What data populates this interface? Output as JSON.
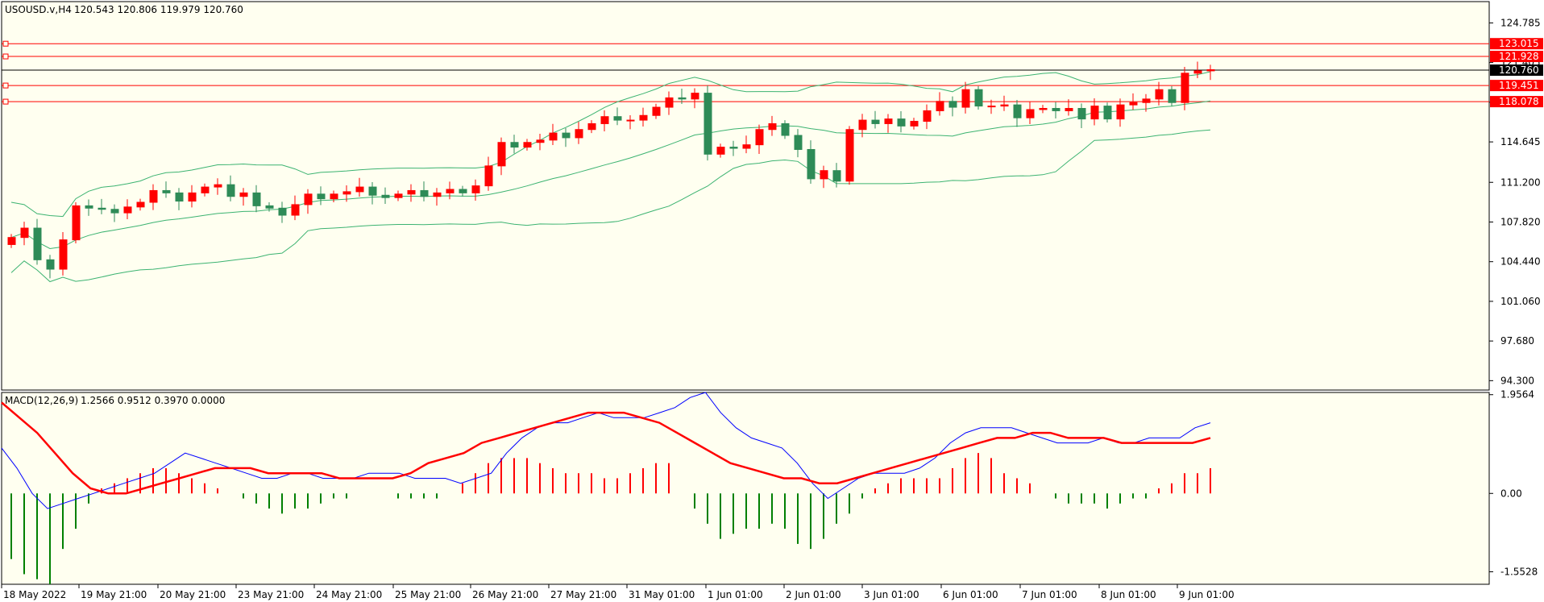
{
  "chart_data": [
    {
      "type": "candlestick",
      "title": "USOUSD.v,H4",
      "ohlc_readout": "120.543 120.806 119.979 120.760",
      "y_ticks": [
        "124.785",
        "121.405",
        "118.025",
        "114.645",
        "111.200",
        "107.820",
        "104.440",
        "101.060",
        "97.680",
        "94.300"
      ],
      "ylim": [
        93.5,
        126.6
      ],
      "x_ticks": [
        "18 May 2022",
        "19 May 21:00",
        "20 May 21:00",
        "23 May 21:00",
        "24 May 21:00",
        "25 May 21:00",
        "26 May 21:00",
        "27 May 21:00",
        "31 May 01:00",
        "1 Jun 01:00",
        "2 Jun 01:00",
        "3 Jun 01:00",
        "6 Jun 01:00",
        "7 Jun 01:00",
        "8 Jun 01:00",
        "9 Jun 01:00"
      ],
      "current_price": "120.760",
      "levels": [
        {
          "value": 123.015,
          "label": "123.015",
          "color": "#ff0000"
        },
        {
          "value": 121.928,
          "label": "121.928",
          "color": "#ff0000"
        },
        {
          "value": 119.451,
          "label": "119.451",
          "color": "#ff0000"
        },
        {
          "value": 118.078,
          "label": "118.078",
          "color": "#ff0000"
        }
      ],
      "colors": {
        "bull": "#ff0000",
        "bear": "#2e8b57",
        "bands": "#3cb371",
        "price_line": "#000000"
      },
      "closes": [
        106.5,
        107.3,
        104.6,
        103.8,
        106.3,
        109.2,
        109.0,
        108.9,
        108.6,
        109.1,
        109.5,
        110.5,
        110.3,
        109.6,
        110.3,
        110.8,
        111.0,
        110.0,
        110.3,
        109.2,
        109.0,
        108.4,
        109.3,
        110.2,
        109.8,
        110.2,
        110.4,
        110.8,
        110.1,
        109.9,
        110.2,
        110.5,
        110.0,
        110.3,
        110.6,
        110.3,
        110.9,
        112.6,
        114.6,
        114.2,
        114.6,
        114.8,
        115.4,
        115.0,
        115.7,
        116.2,
        116.8,
        116.5,
        116.5,
        116.9,
        117.6,
        118.4,
        118.3,
        118.8,
        113.6,
        114.2,
        114.1,
        114.4,
        115.7,
        116.2,
        115.2,
        114.0,
        111.5,
        112.2,
        111.3,
        115.7,
        116.5,
        116.2,
        116.6,
        116.0,
        116.4,
        117.3,
        118.1,
        117.6,
        119.1,
        117.7,
        117.7,
        117.8,
        116.7,
        117.4,
        117.5,
        117.3,
        117.5,
        116.6,
        117.7,
        116.6,
        117.8,
        118.0,
        118.3,
        119.1,
        118.0,
        120.5,
        120.7,
        120.8
      ]
    },
    {
      "type": "macd",
      "title": "MACD(12,26,9)",
      "readout": "1.2566 0.9512 0.3970 0.0000",
      "y_ticks": [
        "1.9564",
        "0.00",
        "-1.5528"
      ],
      "ylim": [
        -1.8,
        2.0
      ],
      "colors": {
        "hist_pos": "#ff0000",
        "hist_neg": "#008000",
        "macd_line": "#0000ff",
        "signal_line": "#ff0000"
      },
      "histogram": [
        -1.3,
        -1.6,
        -1.7,
        -1.8,
        -1.1,
        -0.7,
        -0.2,
        0.1,
        0.2,
        0.3,
        0.4,
        0.5,
        0.5,
        0.4,
        0.3,
        0.2,
        0.1,
        0.0,
        -0.1,
        -0.2,
        -0.3,
        -0.4,
        -0.3,
        -0.3,
        -0.2,
        -0.1,
        -0.1,
        0.0,
        0.0,
        0.0,
        -0.1,
        -0.1,
        -0.1,
        -0.1,
        0.0,
        0.2,
        0.4,
        0.6,
        0.7,
        0.7,
        0.7,
        0.6,
        0.5,
        0.4,
        0.4,
        0.4,
        0.3,
        0.3,
        0.4,
        0.5,
        0.6,
        0.6,
        0.0,
        -0.3,
        -0.6,
        -0.9,
        -0.8,
        -0.7,
        -0.7,
        -0.6,
        -0.7,
        -1.0,
        -1.1,
        -0.9,
        -0.6,
        -0.4,
        -0.1,
        0.1,
        0.2,
        0.3,
        0.3,
        0.3,
        0.3,
        0.5,
        0.7,
        0.8,
        0.7,
        0.4,
        0.3,
        0.2,
        0.0,
        -0.1,
        -0.2,
        -0.2,
        -0.2,
        -0.3,
        -0.2,
        -0.1,
        -0.1,
        0.1,
        0.2,
        0.4,
        0.4,
        0.5
      ],
      "macd": [
        0.9,
        0.5,
        0.0,
        -0.3,
        -0.2,
        -0.1,
        0.0,
        0.1,
        0.2,
        0.3,
        0.4,
        0.6,
        0.8,
        0.7,
        0.6,
        0.5,
        0.4,
        0.3,
        0.3,
        0.4,
        0.4,
        0.3,
        0.3,
        0.3,
        0.4,
        0.4,
        0.4,
        0.3,
        0.3,
        0.3,
        0.2,
        0.3,
        0.4,
        0.8,
        1.1,
        1.3,
        1.4,
        1.4,
        1.5,
        1.6,
        1.5,
        1.5,
        1.5,
        1.6,
        1.7,
        1.9,
        2.0,
        1.6,
        1.3,
        1.1,
        1.0,
        0.9,
        0.6,
        0.2,
        -0.1,
        0.1,
        0.3,
        0.4,
        0.4,
        0.4,
        0.5,
        0.7,
        1.0,
        1.2,
        1.3,
        1.3,
        1.3,
        1.2,
        1.1,
        1.0,
        1.0,
        1.0,
        1.1,
        1.0,
        1.0,
        1.1,
        1.1,
        1.1,
        1.3,
        1.4
      ],
      "signal": [
        1.8,
        1.5,
        1.2,
        0.8,
        0.4,
        0.1,
        0.0,
        0.0,
        0.1,
        0.2,
        0.3,
        0.4,
        0.5,
        0.5,
        0.5,
        0.4,
        0.4,
        0.4,
        0.4,
        0.3,
        0.3,
        0.3,
        0.3,
        0.4,
        0.6,
        0.7,
        0.8,
        1.0,
        1.1,
        1.2,
        1.3,
        1.4,
        1.5,
        1.6,
        1.6,
        1.6,
        1.5,
        1.4,
        1.2,
        1.0,
        0.8,
        0.6,
        0.5,
        0.4,
        0.3,
        0.3,
        0.2,
        0.2,
        0.3,
        0.4,
        0.5,
        0.6,
        0.7,
        0.8,
        0.9,
        1.0,
        1.1,
        1.1,
        1.2,
        1.2,
        1.1,
        1.1,
        1.1,
        1.0,
        1.0,
        1.0,
        1.0,
        1.0,
        1.1
      ]
    }
  ]
}
